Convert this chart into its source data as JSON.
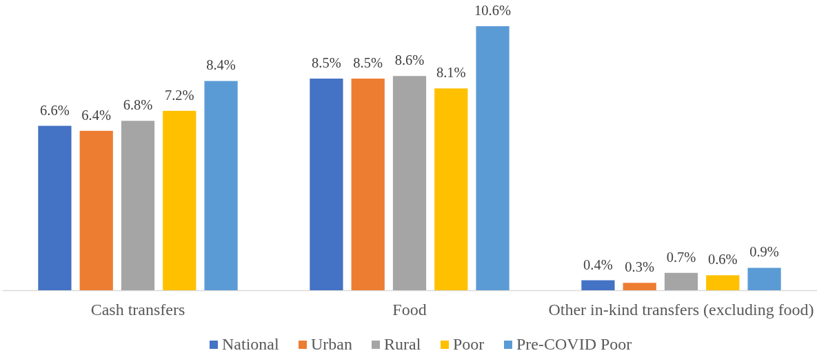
{
  "chart_data": {
    "type": "bar",
    "categories": [
      "Cash transfers",
      "Food",
      "Other in-kind transfers (excluding food)"
    ],
    "series": [
      {
        "name": "National",
        "color": "#4472c4",
        "values": [
          6.6,
          8.5,
          0.4
        ],
        "value_labels": [
          "6.6%",
          "8.5%",
          "0.4%"
        ]
      },
      {
        "name": "Urban",
        "color": "#ed7d31",
        "values": [
          6.4,
          8.5,
          0.3
        ],
        "value_labels": [
          "6.4%",
          "8.5%",
          "0.3%"
        ]
      },
      {
        "name": "Rural",
        "color": "#a5a5a5",
        "values": [
          6.8,
          8.6,
          0.7
        ],
        "value_labels": [
          "6.8%",
          "8.6%",
          "0.7%"
        ]
      },
      {
        "name": "Poor",
        "color": "#ffc000",
        "values": [
          7.2,
          8.1,
          0.6
        ],
        "value_labels": [
          "7.2%",
          "8.1%",
          "0.6%"
        ]
      },
      {
        "name": "Pre-COVID Poor",
        "color": "#5b9bd5",
        "values": [
          8.4,
          10.6,
          0.9
        ],
        "value_labels": [
          "8.4%",
          "10.6%",
          "0.9%"
        ]
      }
    ],
    "legend": "bottom",
    "tick_labels": "x"
  }
}
